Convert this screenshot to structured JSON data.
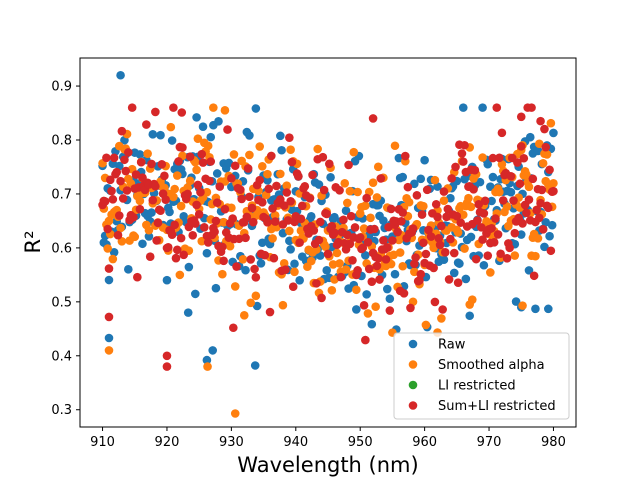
{
  "chart_data": {
    "type": "scatter",
    "title": "",
    "xlabel": "Wavelength (nm)",
    "ylabel": "R²",
    "xlim": [
      906.5,
      983.5
    ],
    "ylim": [
      0.268,
      0.952
    ],
    "xticks": [
      910,
      920,
      930,
      940,
      950,
      960,
      970,
      980
    ],
    "yticks": [
      0.3,
      0.4,
      0.5,
      0.6,
      0.7,
      0.8,
      0.9
    ],
    "xtick_labels": [
      "910",
      "920",
      "930",
      "940",
      "950",
      "960",
      "970",
      "980"
    ],
    "ytick_labels": [
      "0.3",
      "0.4",
      "0.5",
      "0.6",
      "0.7",
      "0.8",
      "0.9"
    ],
    "grid": false,
    "legend_position": "lower-right",
    "x_range": [
      910,
      980
    ],
    "x_step": 0.2,
    "series": [
      {
        "name": "Raw",
        "color": "#1f77b4",
        "notable_points": [
          [
            912.8,
            0.92
          ],
          [
            911.0,
            0.433
          ],
          [
            926.2,
            0.392
          ],
          [
            927.1,
            0.41
          ],
          [
            933.7,
            0.382
          ],
          [
            979.2,
            0.487
          ],
          [
            975.0,
            0.49
          ],
          [
            923.3,
            0.48
          ]
        ]
      },
      {
        "name": "Smoothed alpha",
        "color": "#ff7f0e",
        "notable_points": [
          [
            930.6,
            0.293
          ],
          [
            911.0,
            0.41
          ],
          [
            926.3,
            0.38
          ],
          [
            929.0,
            0.855
          ],
          [
            932.0,
            0.475
          ],
          [
            962.0,
            0.443
          ],
          [
            967.0,
            0.495
          ],
          [
            975.2,
            0.493
          ]
        ]
      },
      {
        "name": "LI restricted",
        "color": "#2ca02c",
        "notable_points": []
      },
      {
        "name": "Sum+LI restricted",
        "color": "#d62728",
        "notable_points": [
          [
            920.0,
            0.38
          ],
          [
            920.0,
            0.4
          ],
          [
            930.3,
            0.452
          ],
          [
            918.2,
            0.852
          ],
          [
            922.3,
            0.851
          ],
          [
            952.0,
            0.84
          ],
          [
            975.0,
            0.843
          ],
          [
            978.0,
            0.835
          ],
          [
            911.0,
            0.472
          ]
        ]
      }
    ]
  }
}
